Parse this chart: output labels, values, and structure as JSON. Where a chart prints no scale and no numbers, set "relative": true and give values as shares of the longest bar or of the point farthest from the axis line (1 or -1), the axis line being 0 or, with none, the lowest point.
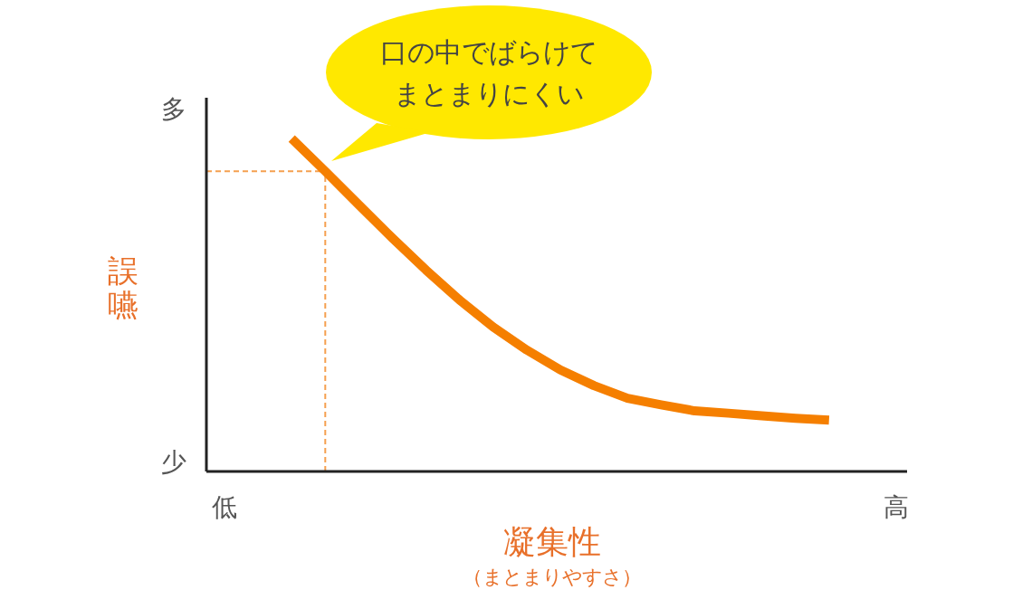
{
  "chart_data": {
    "type": "line",
    "xlabel": "凝集性",
    "ylabel": "誤嚥",
    "relative": true,
    "annotations": [
      "口の中でばらけてまとまりにくい",
      "多",
      "少",
      "（まとまりやすさ）"
    ],
    "categories": [
      "低",
      null,
      null,
      null,
      null,
      null,
      null,
      null,
      null,
      null,
      null,
      null,
      null,
      null,
      null,
      null,
      null,
      null,
      null,
      null,
      "高"
    ],
    "series": [
      {
        "color": "#f57f00",
        "values": [
          null,
          null,
          1.0,
          0.902,
          0.801,
          0.701,
          0.605,
          0.515,
          0.434,
          0.365,
          0.305,
          0.258,
          0.22,
          0.2,
          0.182,
          0.175,
          0.167,
          0.16,
          0.154,
          null,
          null
        ]
      }
    ],
    "ref_lines": [
      {
        "axis": "y",
        "value": 0.902,
        "color": "#f5a050",
        "line_style": "dashed"
      }
    ],
    "grid": false
  }
}
